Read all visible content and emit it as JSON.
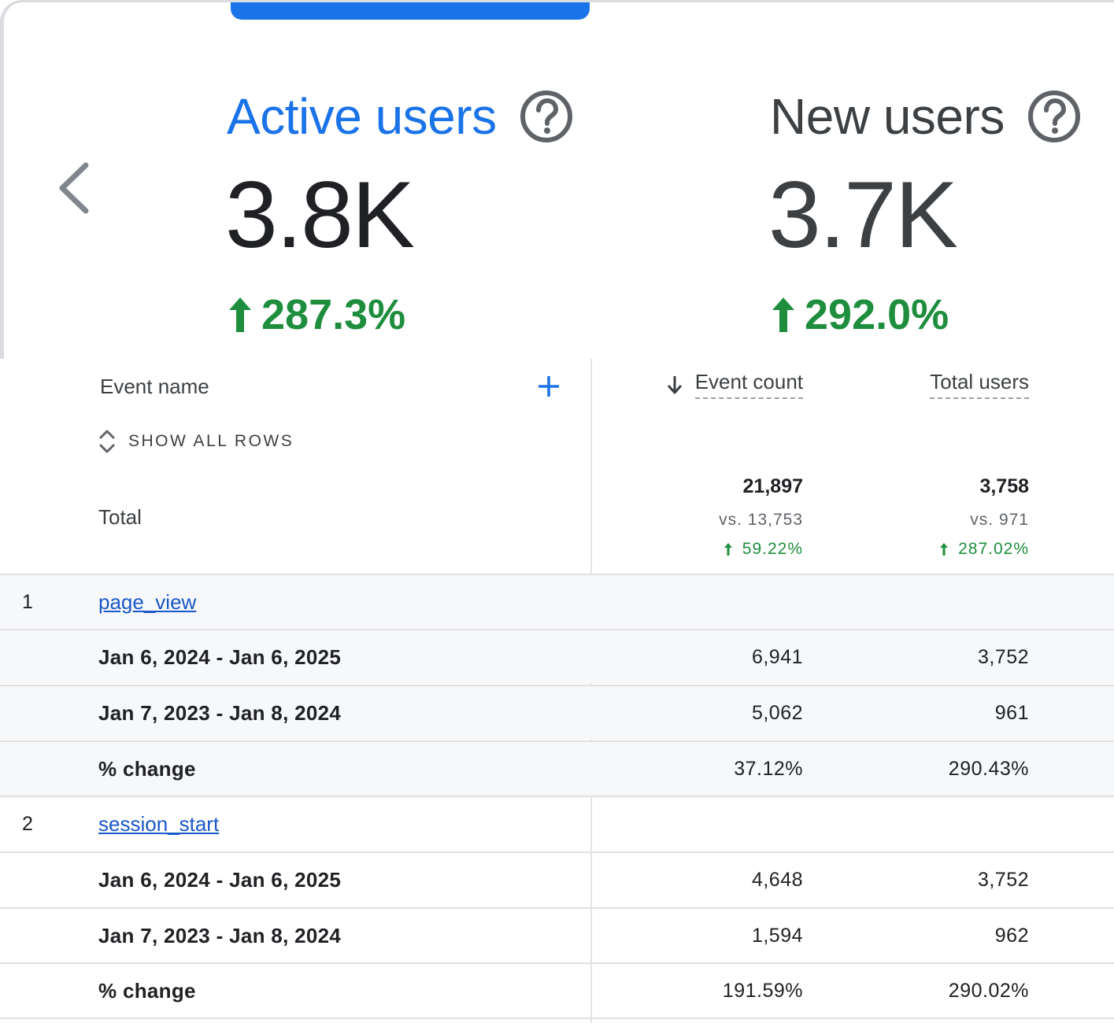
{
  "metrics": [
    {
      "title": "Active users",
      "value": "3.8K",
      "change": "287.3%"
    },
    {
      "title": "New users",
      "value": "3.7K",
      "change": "292.0%"
    }
  ],
  "table": {
    "dimension_header": "Event name",
    "show_all_rows": "SHOW ALL ROWS",
    "columns": [
      "Event count",
      "Total users"
    ],
    "total": {
      "label": "Total",
      "event_count": {
        "value": "21,897",
        "vs": "vs. 13,753",
        "change": "59.22%"
      },
      "total_users": {
        "value": "3,758",
        "vs": "vs. 971",
        "change": "287.02%"
      }
    },
    "rows": [
      {
        "index": "1",
        "name": "page_view",
        "label": "",
        "event_count": "",
        "total_users": ""
      },
      {
        "index": "",
        "name": "",
        "label": "Jan 6, 2024 - Jan 6, 2025",
        "event_count": "6,941",
        "total_users": "3,752"
      },
      {
        "index": "",
        "name": "",
        "label": "Jan 7, 2023 - Jan 8, 2024",
        "event_count": "5,062",
        "total_users": "961"
      },
      {
        "index": "",
        "name": "",
        "label": "% change",
        "event_count": "37.12%",
        "total_users": "290.43%"
      },
      {
        "index": "2",
        "name": "session_start",
        "label": "",
        "event_count": "",
        "total_users": ""
      },
      {
        "index": "",
        "name": "",
        "label": "Jan 6, 2024 - Jan 6, 2025",
        "event_count": "4,648",
        "total_users": "3,752"
      },
      {
        "index": "",
        "name": "",
        "label": "Jan 7, 2023 - Jan 8, 2024",
        "event_count": "1,594",
        "total_users": "962"
      },
      {
        "index": "",
        "name": "",
        "label": "% change",
        "event_count": "191.59%",
        "total_users": "290.02%"
      }
    ]
  },
  "colors": {
    "accent": "#1a73e8",
    "positive": "#1e8e3e",
    "link": "#1a57c8",
    "row_shade": "#f7f8fa"
  },
  "icons": [
    "chevron-left-icon",
    "help-icon",
    "arrow-up-icon",
    "add-icon",
    "arrow-down-icon",
    "unfold-icon"
  ]
}
